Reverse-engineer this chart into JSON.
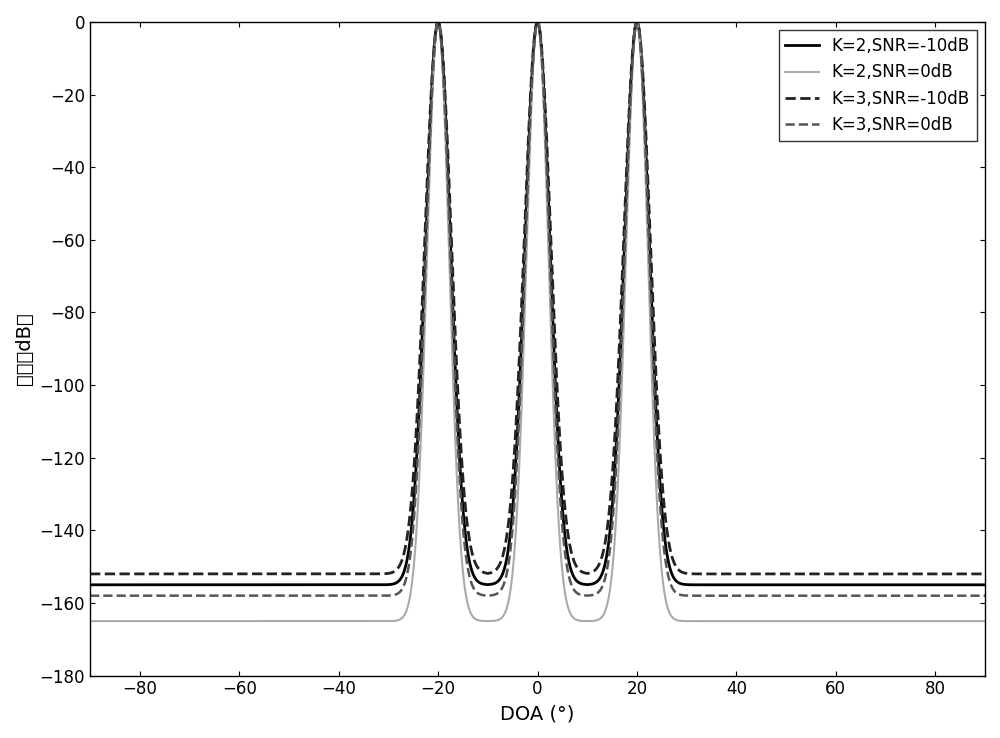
{
  "title": "",
  "xlabel": "DOA (°)",
  "ylabel": "增益（dB）",
  "xlim": [
    -90,
    90
  ],
  "ylim": [
    -180,
    0
  ],
  "yticks": [
    0,
    -20,
    -40,
    -60,
    -80,
    -100,
    -120,
    -140,
    -160,
    -180
  ],
  "xticks": [
    -80,
    -60,
    -40,
    -20,
    0,
    20,
    40,
    60,
    80
  ],
  "peaks": [
    -20,
    0,
    20
  ],
  "lines": [
    {
      "label": "K=2,SNR=-10dB",
      "color": "#000000",
      "linestyle": "solid",
      "linewidth": 2.0,
      "noise_floor": -155,
      "peak_sharpness": 8.0,
      "valley_depth": -145
    },
    {
      "label": "K=2,SNR=0dB",
      "color": "#aaaaaa",
      "linestyle": "solid",
      "linewidth": 1.5,
      "noise_floor": -165,
      "peak_sharpness": 10.0,
      "valley_depth": -160
    },
    {
      "label": "K=3,SNR=-10dB",
      "color": "#222222",
      "linestyle": "dashed",
      "linewidth": 2.0,
      "noise_floor": -152,
      "peak_sharpness": 7.0,
      "valley_depth": -135
    },
    {
      "label": "K=3,SNR=0dB",
      "color": "#555555",
      "linestyle": "dashed",
      "linewidth": 1.8,
      "noise_floor": -158,
      "peak_sharpness": 8.5,
      "valley_depth": -155
    }
  ],
  "legend_loc": "upper right",
  "grid": false,
  "figure_facecolor": "#ffffff",
  "axes_facecolor": "#ffffff"
}
